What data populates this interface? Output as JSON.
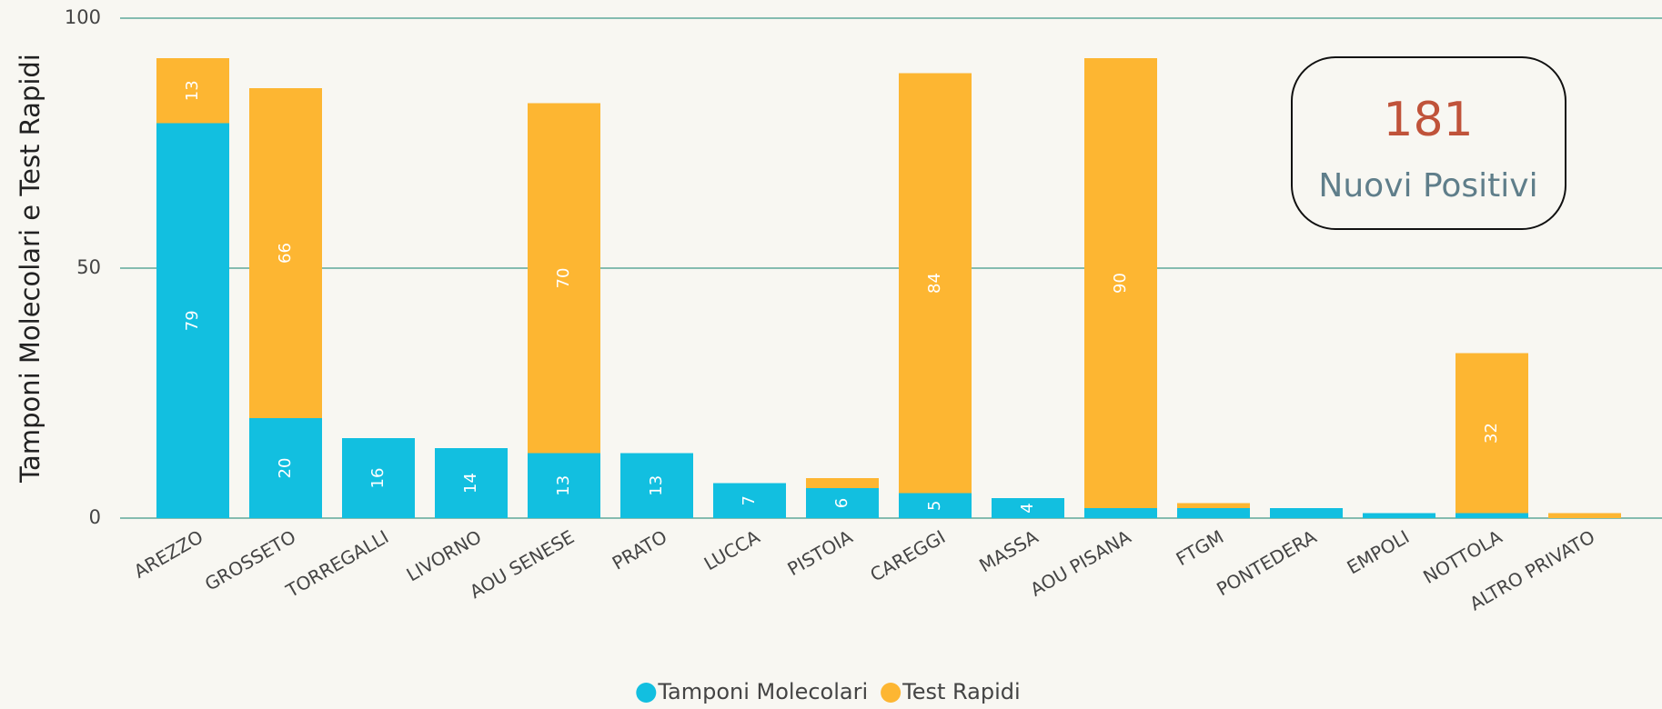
{
  "chart_data": {
    "type": "stacked_bar",
    "y_label": "Tamponi Molecolari e Test Rapidi",
    "categories": [
      "AREZZO",
      "GROSSETO",
      "TORREGALLI",
      "LIVORNO",
      "AOU SENESE",
      "PRATO",
      "LUCCA",
      "PISTOIA",
      "CAREGGI",
      "MASSA",
      "AOU PISANA",
      "FTGM",
      "PONTEDERA",
      "EMPOLI",
      "NOTTOLA",
      "ALTRO PRIVATO"
    ],
    "series": [
      {
        "name": "Tamponi Molecolari",
        "color": "#12bfe0",
        "values": [
          79,
          20,
          16,
          14,
          13,
          13,
          7,
          6,
          5,
          4,
          2,
          2,
          2,
          1,
          1,
          0
        ]
      },
      {
        "name": "Test Rapidi",
        "color": "#fdb632",
        "values": [
          13,
          66,
          0,
          0,
          70,
          0,
          0,
          2,
          84,
          0,
          90,
          1,
          0,
          0,
          32,
          1
        ]
      }
    ],
    "ylim": [
      0,
      100
    ],
    "yticks": [
      0,
      50,
      100
    ],
    "grid": true,
    "legend": "bottom",
    "card": {
      "value": 181,
      "label": "Nuovi Positivi"
    }
  }
}
